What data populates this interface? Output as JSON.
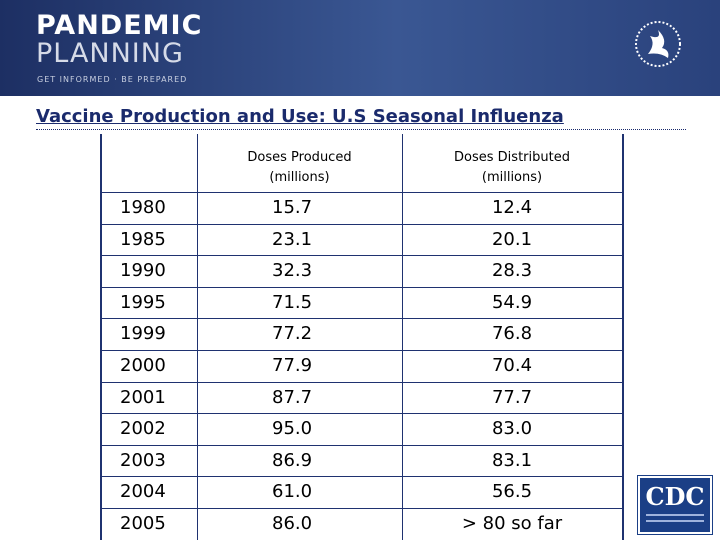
{
  "header": {
    "brand_line1": "PANDEMIC",
    "brand_line2": "PLANNING",
    "tagline": "GET INFORMED · BE PREPARED"
  },
  "title": "Vaccine Production and Use: U.S Seasonal Influenza",
  "table": {
    "columns": [
      {
        "label": "Doses Produced",
        "unit": "(millions)"
      },
      {
        "label": "Doses Distributed",
        "unit": "(millions)"
      }
    ],
    "rows": [
      [
        "1980",
        "15.7",
        "12.4"
      ],
      [
        "1985",
        "23.1",
        "20.1"
      ],
      [
        "1990",
        "32.3",
        "28.3"
      ],
      [
        "1995",
        "71.5",
        "54.9"
      ],
      [
        "1999",
        "77.2",
        "76.8"
      ],
      [
        "2000",
        "77.9",
        "70.4"
      ],
      [
        "2001",
        "87.7",
        "77.7"
      ],
      [
        "2002",
        "95.0",
        "83.0"
      ],
      [
        "2003",
        "86.9",
        "83.1"
      ],
      [
        "2004",
        "61.0",
        "56.5"
      ],
      [
        "2005",
        "86.0",
        "> 80 so far"
      ]
    ]
  },
  "logos": {
    "cdc": "CDC"
  }
}
